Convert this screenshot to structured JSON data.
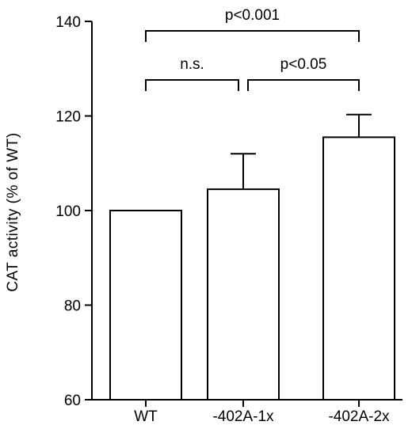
{
  "chart_data": {
    "type": "bar",
    "categories": [
      "WT",
      "-402A-1x",
      "-402A-2x"
    ],
    "values": [
      100,
      104.5,
      115.5
    ],
    "errors": [
      0,
      7.5,
      4.8
    ],
    "ylabel": "CAT activity (% of WT)",
    "xlabel": "",
    "title": "",
    "ylim": [
      60,
      140
    ],
    "yticks": [
      60,
      80,
      100,
      120,
      140
    ],
    "bar_color": "#ffffff",
    "grid": false,
    "annotations": [
      {
        "label": "p<0.001",
        "from": 0,
        "to": 2,
        "level": 0
      },
      {
        "label": "n.s.",
        "from": 0,
        "to": 1,
        "level": 1
      },
      {
        "label": "p<0.05",
        "from": 1,
        "to": 2,
        "level": 1
      }
    ]
  }
}
